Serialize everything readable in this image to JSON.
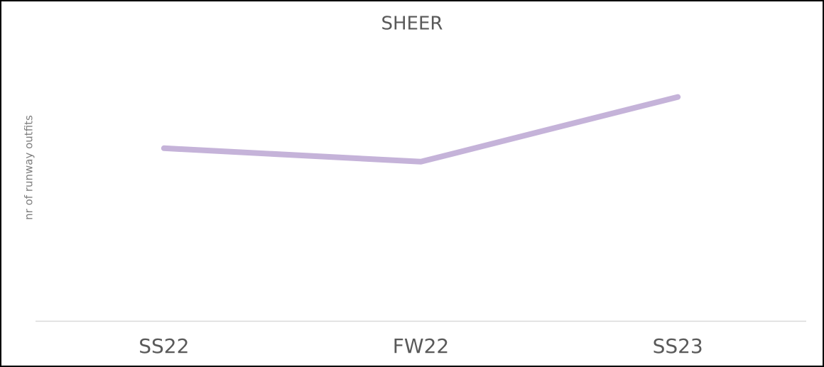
{
  "chart_data": {
    "type": "line",
    "title": "SHEER",
    "y_label": "nr of runway outfits",
    "categories": [
      "SS22",
      "FW22",
      "SS23"
    ],
    "values": [
      64,
      59,
      83
    ],
    "color": "#c5b3d9",
    "ylim": [
      0,
      100
    ]
  }
}
